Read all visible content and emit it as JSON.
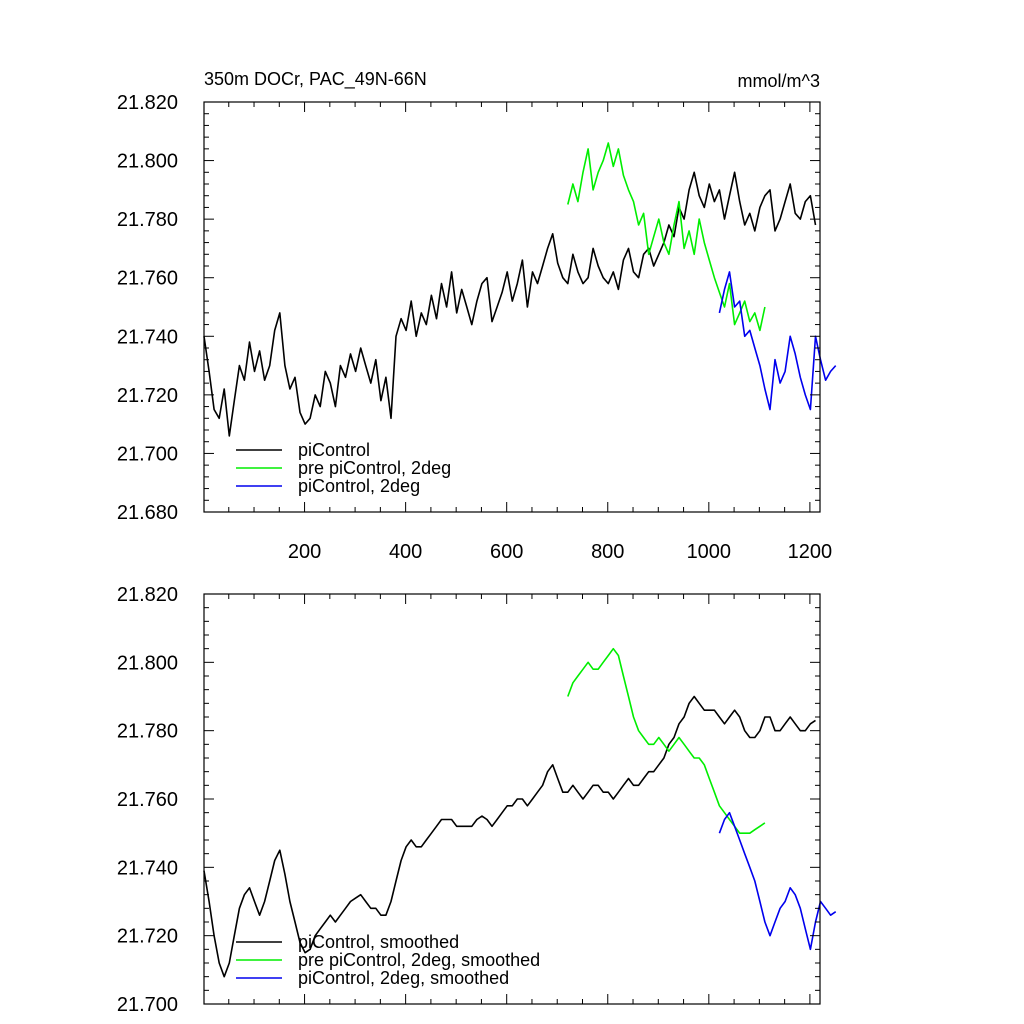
{
  "chart_data": [
    {
      "type": "line",
      "title": "350m DOCr, PAC_49N-66N",
      "units": "mmol/m^3",
      "xlim": [
        1,
        1220
      ],
      "ylim": [
        21.68,
        21.82
      ],
      "xticks": [
        200,
        400,
        600,
        800,
        1000,
        1200
      ],
      "xtick_labels": [
        "200",
        "400",
        "600",
        "800",
        "1000",
        "1200"
      ],
      "yticks": [
        21.68,
        21.7,
        21.72,
        21.74,
        21.76,
        21.78,
        21.8,
        21.82
      ],
      "ytick_labels": [
        "21.680",
        "21.700",
        "21.720",
        "21.740",
        "21.760",
        "21.780",
        "21.800",
        "21.820"
      ],
      "legend_position": "bottom-left",
      "series": [
        {
          "name": "piControl",
          "color": "#000000",
          "x_start": 1,
          "x_step": 10,
          "values": [
            21.74,
            21.728,
            21.715,
            21.712,
            21.722,
            21.706,
            21.718,
            21.73,
            21.725,
            21.738,
            21.728,
            21.735,
            21.725,
            21.73,
            21.742,
            21.748,
            21.73,
            21.722,
            21.726,
            21.714,
            21.71,
            21.712,
            21.72,
            21.716,
            21.728,
            21.724,
            21.716,
            21.73,
            21.726,
            21.734,
            21.728,
            21.736,
            21.73,
            21.724,
            21.732,
            21.718,
            21.726,
            21.712,
            21.74,
            21.746,
            21.742,
            21.752,
            21.74,
            21.748,
            21.744,
            21.754,
            21.746,
            21.758,
            21.75,
            21.762,
            21.748,
            21.756,
            21.75,
            21.744,
            21.752,
            21.758,
            21.76,
            21.745,
            21.75,
            21.755,
            21.762,
            21.752,
            21.758,
            21.766,
            21.75,
            21.762,
            21.758,
            21.764,
            21.77,
            21.775,
            21.765,
            21.76,
            21.758,
            21.768,
            21.762,
            21.758,
            21.76,
            21.77,
            21.764,
            21.76,
            21.758,
            21.762,
            21.756,
            21.766,
            21.77,
            21.762,
            21.76,
            21.768,
            21.77,
            21.764,
            21.768,
            21.772,
            21.778,
            21.774,
            21.784,
            21.78,
            21.79,
            21.796,
            21.788,
            21.784,
            21.792,
            21.786,
            21.79,
            21.78,
            21.788,
            21.796,
            21.786,
            21.778,
            21.782,
            21.776,
            21.784,
            21.788,
            21.79,
            21.776,
            21.78,
            21.786,
            21.792,
            21.782,
            21.78,
            21.786,
            21.788,
            21.778
          ]
        },
        {
          "name": "pre piControl, 2deg",
          "color": "#00ee00",
          "x_start": 721,
          "x_step": 10,
          "values": [
            21.785,
            21.792,
            21.786,
            21.796,
            21.804,
            21.79,
            21.796,
            21.8,
            21.806,
            21.798,
            21.804,
            21.795,
            21.79,
            21.786,
            21.778,
            21.782,
            21.768,
            21.774,
            21.78,
            21.772,
            21.768,
            21.778,
            21.786,
            21.77,
            21.776,
            21.768,
            21.78,
            21.772,
            21.766,
            21.76,
            21.755,
            21.75,
            21.758,
            21.744,
            21.748,
            21.752,
            21.745,
            21.748,
            21.742,
            21.75
          ]
        },
        {
          "name": "piControl, 2deg",
          "color": "#0000ee",
          "x_start": 1021,
          "x_step": 10,
          "values": [
            21.748,
            21.756,
            21.762,
            21.75,
            21.752,
            21.74,
            21.742,
            21.736,
            21.73,
            21.722,
            21.715,
            21.732,
            21.724,
            21.728,
            21.74,
            21.734,
            21.726,
            21.72,
            21.715,
            21.74,
            21.732,
            21.725,
            21.728,
            21.73
          ]
        }
      ],
      "legend": [
        {
          "label": "piControl",
          "color": "#000000"
        },
        {
          "label": "pre piControl, 2deg",
          "color": "#00ee00"
        },
        {
          "label": "piControl, 2deg",
          "color": "#0000ee"
        }
      ]
    },
    {
      "type": "line",
      "title": "",
      "xlim": [
        1,
        1220
      ],
      "ylim": [
        21.7,
        21.82
      ],
      "xticks": [
        200,
        400,
        600,
        800,
        1000,
        1200
      ],
      "xtick_labels": [],
      "yticks": [
        21.7,
        21.72,
        21.74,
        21.76,
        21.78,
        21.8,
        21.82
      ],
      "ytick_labels": [
        "21.700",
        "21.720",
        "21.740",
        "21.760",
        "21.780",
        "21.800",
        "21.820"
      ],
      "legend_position": "bottom-left",
      "series": [
        {
          "name": "piControl, smoothed",
          "color": "#000000",
          "x_start": 1,
          "x_step": 10,
          "values": [
            21.739,
            21.73,
            21.72,
            21.712,
            21.708,
            21.712,
            21.72,
            21.728,
            21.732,
            21.734,
            21.73,
            21.726,
            21.73,
            21.736,
            21.742,
            21.745,
            21.738,
            21.73,
            21.724,
            21.718,
            21.715,
            21.716,
            21.72,
            21.722,
            21.724,
            21.726,
            21.724,
            21.726,
            21.728,
            21.73,
            21.731,
            21.732,
            21.73,
            21.728,
            21.728,
            21.726,
            21.726,
            21.73,
            21.736,
            21.742,
            21.746,
            21.748,
            21.746,
            21.746,
            21.748,
            21.75,
            21.752,
            21.754,
            21.754,
            21.754,
            21.752,
            21.752,
            21.752,
            21.752,
            21.754,
            21.755,
            21.754,
            21.752,
            21.754,
            21.756,
            21.758,
            21.758,
            21.76,
            21.76,
            21.758,
            21.76,
            21.762,
            21.764,
            21.768,
            21.77,
            21.766,
            21.762,
            21.762,
            21.764,
            21.762,
            21.76,
            21.762,
            21.764,
            21.764,
            21.762,
            21.762,
            21.76,
            21.762,
            21.764,
            21.766,
            21.764,
            21.764,
            21.766,
            21.768,
            21.768,
            21.77,
            21.772,
            21.776,
            21.778,
            21.782,
            21.784,
            21.788,
            21.79,
            21.788,
            21.786,
            21.786,
            21.786,
            21.784,
            21.782,
            21.784,
            21.786,
            21.784,
            21.78,
            21.778,
            21.778,
            21.78,
            21.784,
            21.784,
            21.78,
            21.78,
            21.782,
            21.784,
            21.782,
            21.78,
            21.78,
            21.782,
            21.783
          ]
        },
        {
          "name": "pre piControl, 2deg, smoothed",
          "color": "#00ee00",
          "x_start": 721,
          "x_step": 10,
          "values": [
            21.79,
            21.794,
            21.796,
            21.798,
            21.8,
            21.798,
            21.798,
            21.8,
            21.802,
            21.804,
            21.802,
            21.796,
            21.79,
            21.784,
            21.78,
            21.778,
            21.776,
            21.776,
            21.778,
            21.776,
            21.774,
            21.776,
            21.778,
            21.776,
            21.774,
            21.772,
            21.772,
            21.77,
            21.766,
            21.762,
            21.758,
            21.756,
            21.754,
            21.752,
            21.75,
            21.75,
            21.75,
            21.751,
            21.752,
            21.753
          ]
        },
        {
          "name": "piControl, 2deg, smoothed",
          "color": "#0000ee",
          "x_start": 1021,
          "x_step": 10,
          "values": [
            21.75,
            21.754,
            21.756,
            21.752,
            21.748,
            21.744,
            21.74,
            21.736,
            21.73,
            21.724,
            21.72,
            21.724,
            21.728,
            21.73,
            21.734,
            21.732,
            21.728,
            21.722,
            21.716,
            21.724,
            21.73,
            21.728,
            21.726,
            21.727
          ]
        }
      ],
      "legend": [
        {
          "label": "piControl, smoothed",
          "color": "#000000"
        },
        {
          "label": "pre piControl, 2deg, smoothed",
          "color": "#00ee00"
        },
        {
          "label": "piControl, 2deg, smoothed",
          "color": "#0000ee"
        }
      ]
    }
  ]
}
